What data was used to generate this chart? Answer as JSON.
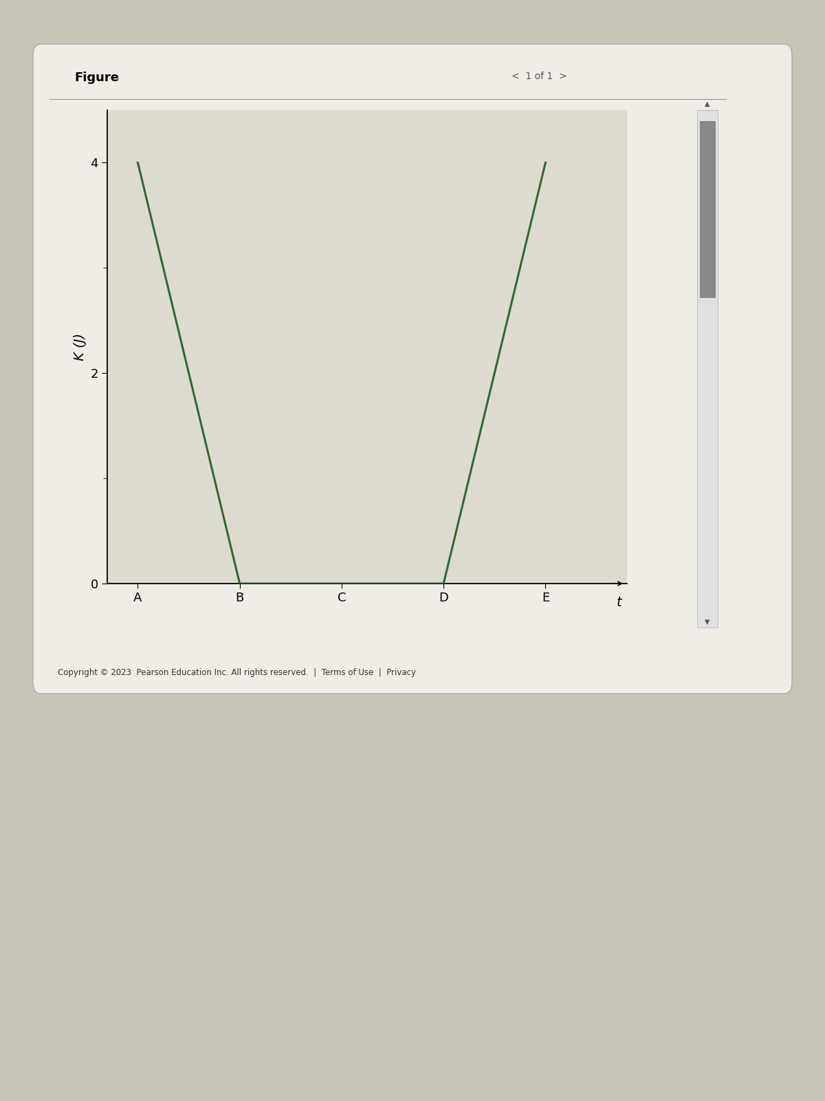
{
  "title": "Figure",
  "ylabel": "K (J)",
  "xlabel": "t",
  "x_points": [
    0,
    1,
    2,
    3,
    4
  ],
  "y_points": [
    4,
    0,
    0,
    0,
    4
  ],
  "x_labels": [
    "A",
    "B",
    "C",
    "D",
    "E"
  ],
  "yticks": [
    0,
    2,
    4
  ],
  "ylim": [
    0,
    4.5
  ],
  "xlim": [
    -0.3,
    4.8
  ],
  "line_color": "#2d6a2d",
  "line_width": 2.2,
  "panel_bg": "#f0ede6",
  "figure_bg": "#c8c4b8",
  "graph_bg": "#dedad0",
  "title_fontsize": 13,
  "label_fontsize": 14,
  "tick_fontsize": 13,
  "figsize": [
    12.0,
    16.0
  ],
  "dpi": 100
}
